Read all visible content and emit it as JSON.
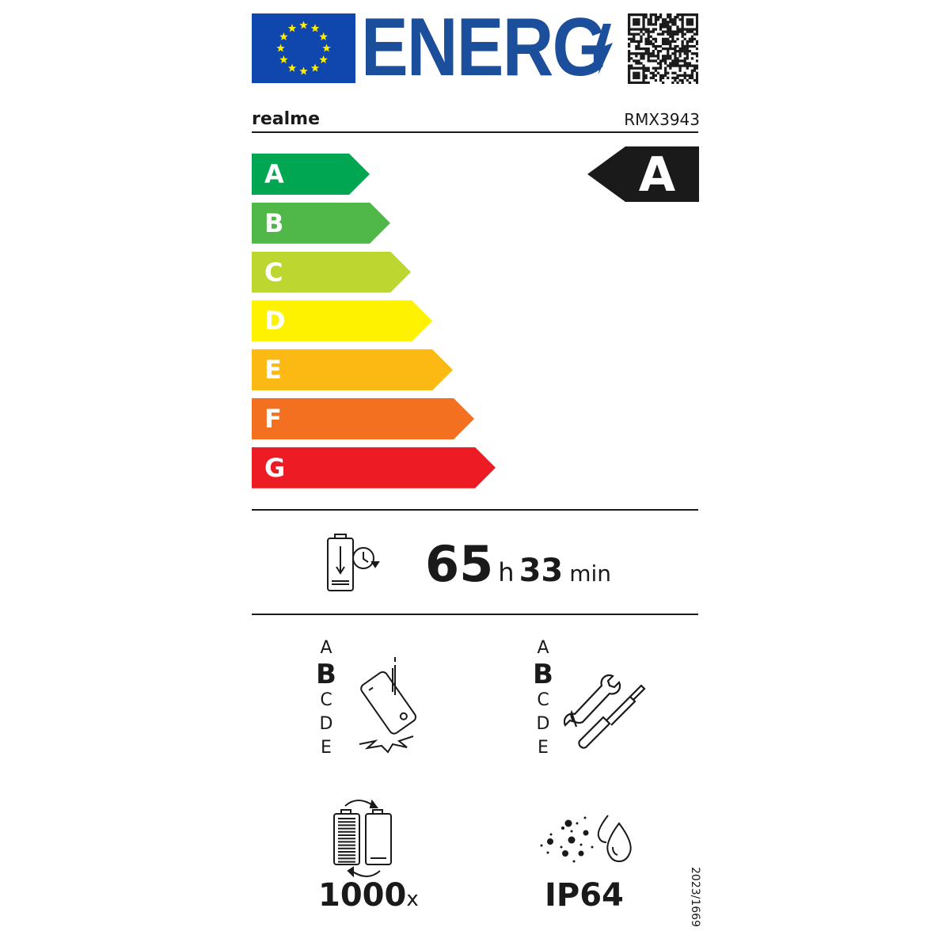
{
  "header": {
    "logo_text": "ENERG",
    "flag_color": "#0f47af",
    "brand_blue": "#1b4f9c",
    "star_color": "#ffed00"
  },
  "supplier": "realme",
  "model": "RMX3943",
  "energy_scale": [
    {
      "letter": "A",
      "color": "#00a651"
    },
    {
      "letter": "B",
      "color": "#50b848"
    },
    {
      "letter": "C",
      "color": "#bed630"
    },
    {
      "letter": "D",
      "color": "#fff200"
    },
    {
      "letter": "E",
      "color": "#fdb913"
    },
    {
      "letter": "F",
      "color": "#f37021"
    },
    {
      "letter": "G",
      "color": "#ed1c24"
    }
  ],
  "energy_class": "A",
  "battery_endurance": {
    "hours": "65",
    "hours_unit": "h",
    "minutes": "33",
    "minutes_unit": "min"
  },
  "drop_resistance": {
    "scale": [
      "A",
      "B",
      "C",
      "D",
      "E"
    ],
    "selected": "B"
  },
  "repairability": {
    "scale": [
      "A",
      "B",
      "C",
      "D",
      "E"
    ],
    "selected": "B"
  },
  "battery_cycles": {
    "value": "1000",
    "unit": "x"
  },
  "ingress_protection": "IP64",
  "regulation": "2023/1669"
}
